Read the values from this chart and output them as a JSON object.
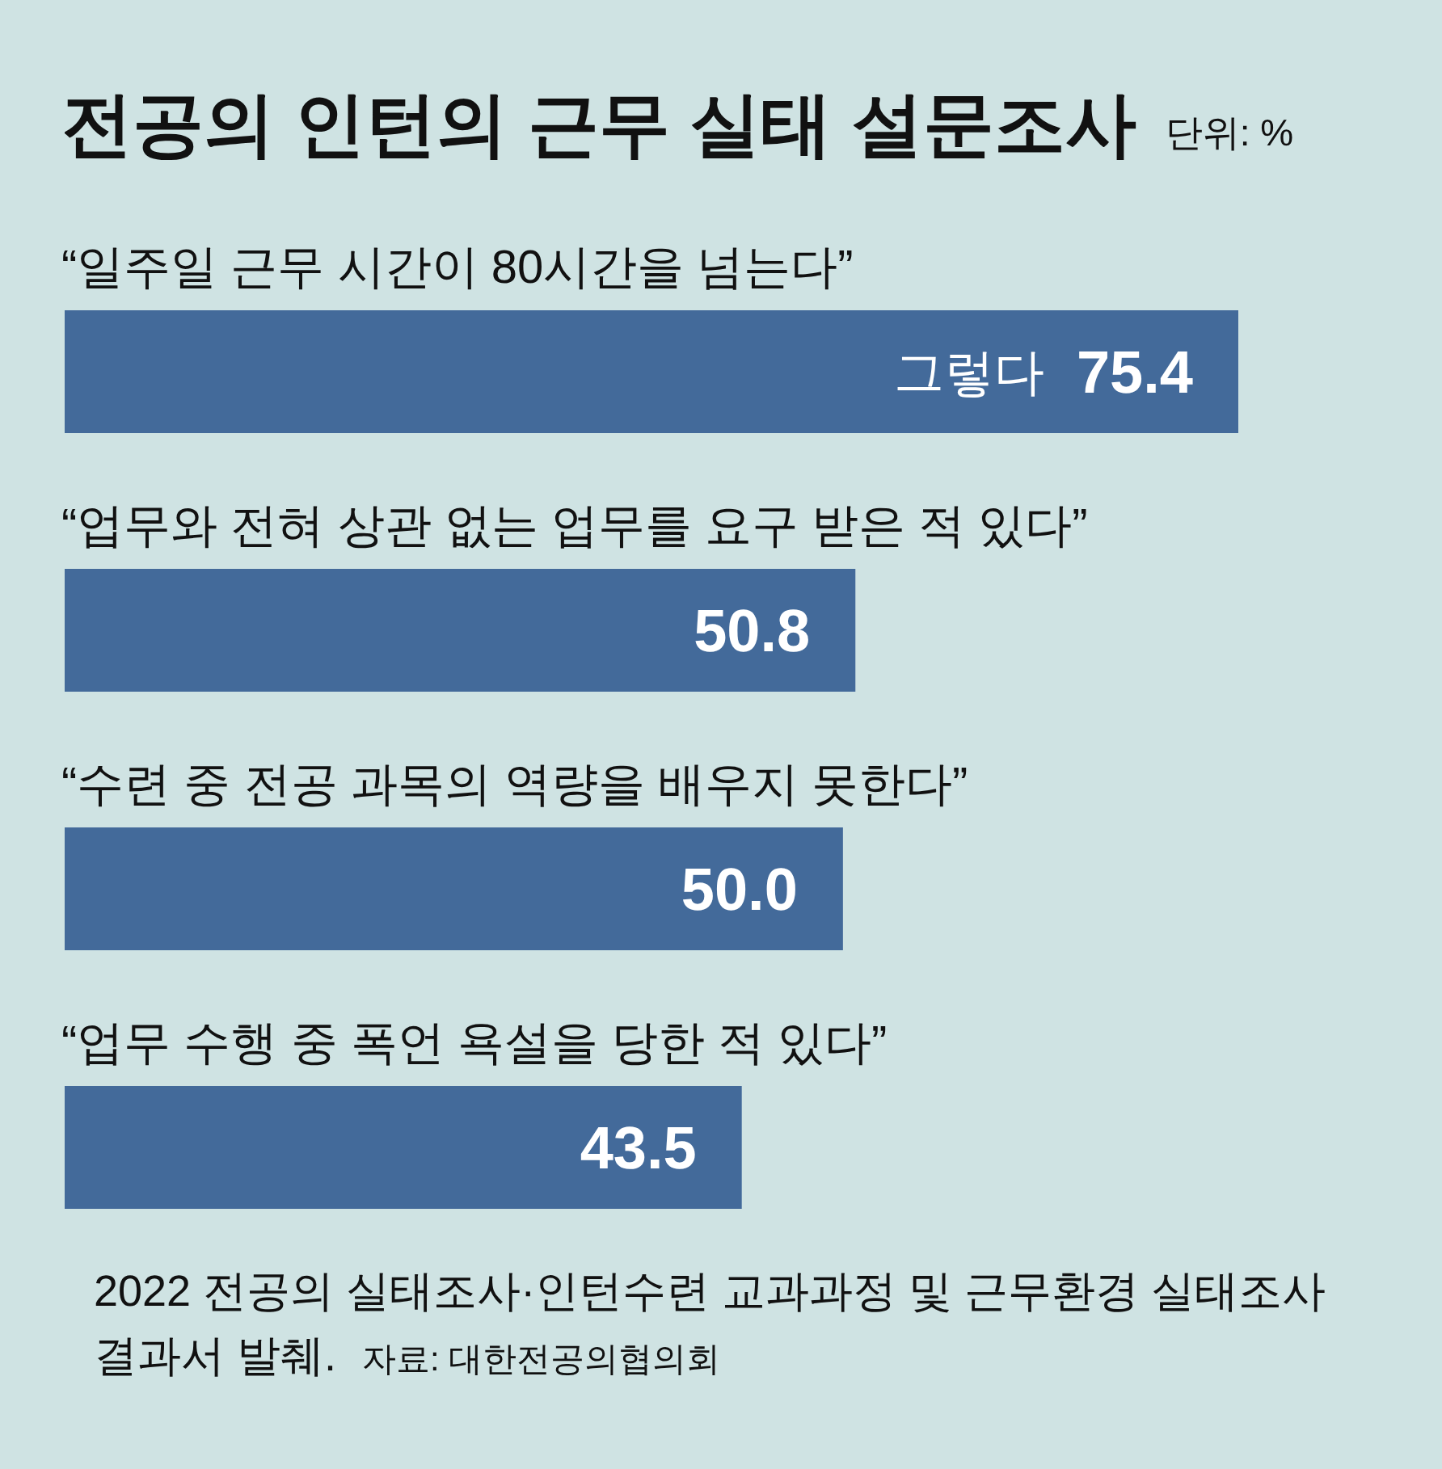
{
  "chart_data": {
    "type": "bar",
    "orientation": "horizontal",
    "title": "전공의 인턴의 근무 실태 설문조사",
    "subtitle": "단위: %",
    "categories": [
      "“일주일 근무 시간이 80시간을 넘는다”",
      "“업무와 전혀 상관 없는 업무를 요구 받은 적 있다”",
      "“수련 중 전공 과목의 역량을 배우지 못한다”",
      "“업무 수행 중 폭언 욕설을 당한 적 있다”"
    ],
    "values": [
      75.4,
      50.8,
      50.0,
      43.5
    ],
    "value_labels": [
      "75.4",
      "50.8",
      "50.0",
      "43.5"
    ],
    "color": "#436a9a",
    "annotations": [
      "그렇다",
      "2022 전공의 실태조사·인턴수련 교과과정 및 근무환경 실태조사 결과서 발췌.",
      "자료: 대한전공의협의회"
    ]
  }
}
